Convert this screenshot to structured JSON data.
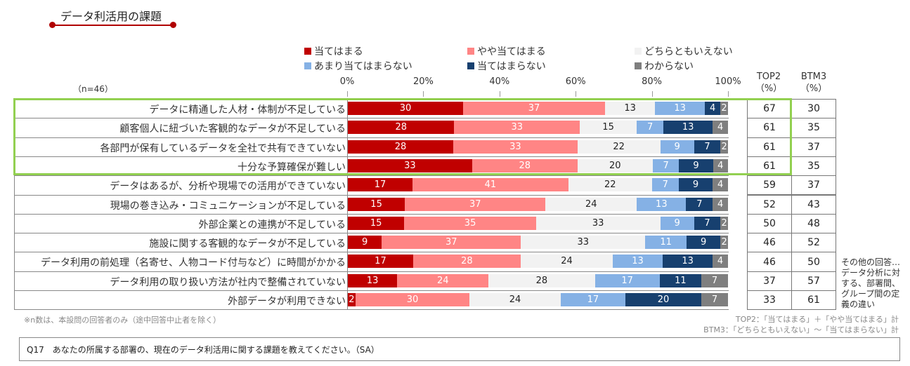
{
  "title": "データ利活用の課題",
  "n_label": "（n=46）",
  "headers": {
    "top2": [
      "TOP2",
      "（%）"
    ],
    "btm3": [
      "BTM3",
      "（%）"
    ]
  },
  "notes": {
    "n_note": "※n数は、本設問の回答者のみ（途中回答中止者を除く）",
    "top2_def": "TOP2：「当てはまる」＋「やや当てはまる」計",
    "btm3_def": "BTM3：「どちらともいえない」～「当てはまらない」計"
  },
  "other_answer": "その他の回答…データ分析に対する、部署間、グループ間の定義の違い",
  "question": "Q17　あなたの所属する部署の、現在のデータ利活用に関する課題を教えてください。（SA）",
  "chart_data": {
    "type": "bar",
    "orientation": "horizontal-stacked-100",
    "x_ticks": [
      "0%",
      "20%",
      "40%",
      "60%",
      "80%",
      "100%"
    ],
    "xlim": [
      0,
      100
    ],
    "legend_position": "top",
    "series": [
      {
        "name": "当てはまる",
        "color": "#C00000",
        "values": [
          30,
          28,
          28,
          33,
          17,
          15,
          15,
          9,
          17,
          13,
          2
        ]
      },
      {
        "name": "やや当てはまる",
        "color": "#FF8585",
        "values": [
          37,
          33,
          33,
          28,
          41,
          37,
          35,
          37,
          28,
          24,
          30
        ]
      },
      {
        "name": "どちらともいえない",
        "color": "#F2F2F2",
        "values": [
          13,
          15,
          22,
          20,
          22,
          24,
          33,
          33,
          24,
          28,
          24
        ]
      },
      {
        "name": "あまり当てはまらない",
        "color": "#85B1E5",
        "values": [
          13,
          7,
          9,
          7,
          7,
          13,
          9,
          11,
          13,
          17,
          17
        ]
      },
      {
        "name": "当てはまらない",
        "color": "#17406F",
        "values": [
          4,
          13,
          7,
          9,
          9,
          7,
          7,
          9,
          13,
          11,
          20
        ]
      },
      {
        "name": "わからない",
        "color": "#7F7F7F",
        "values": [
          2,
          4,
          2,
          4,
          4,
          4,
          2,
          2,
          4,
          7,
          7
        ]
      }
    ],
    "categories": [
      "データに精通した人材・体制が不足している",
      "顧客個人に紐づいた客観的なデータが不足している",
      "各部門が保有しているデータを全社で共有できていない",
      "十分な予算確保が難しい",
      "データはあるが、分析や現場での活用ができていない",
      "現場の巻き込み・コミュニケーションが不足している",
      "外部企業との連携が不足している",
      "施設に関する客観的なデータが不足している",
      "データ利用の前処理（名寄せ、人物コード付与など）に時間がかかる",
      "データ利用の取り扱い方法が社内で整備されていない",
      "外部データが利用できない"
    ],
    "top2": [
      67,
      61,
      61,
      61,
      59,
      52,
      50,
      46,
      46,
      37,
      33
    ],
    "btm3": [
      30,
      35,
      37,
      35,
      37,
      43,
      48,
      52,
      50,
      57,
      61
    ],
    "highlighted_rows": 4,
    "highlight_color": "#92D050"
  }
}
